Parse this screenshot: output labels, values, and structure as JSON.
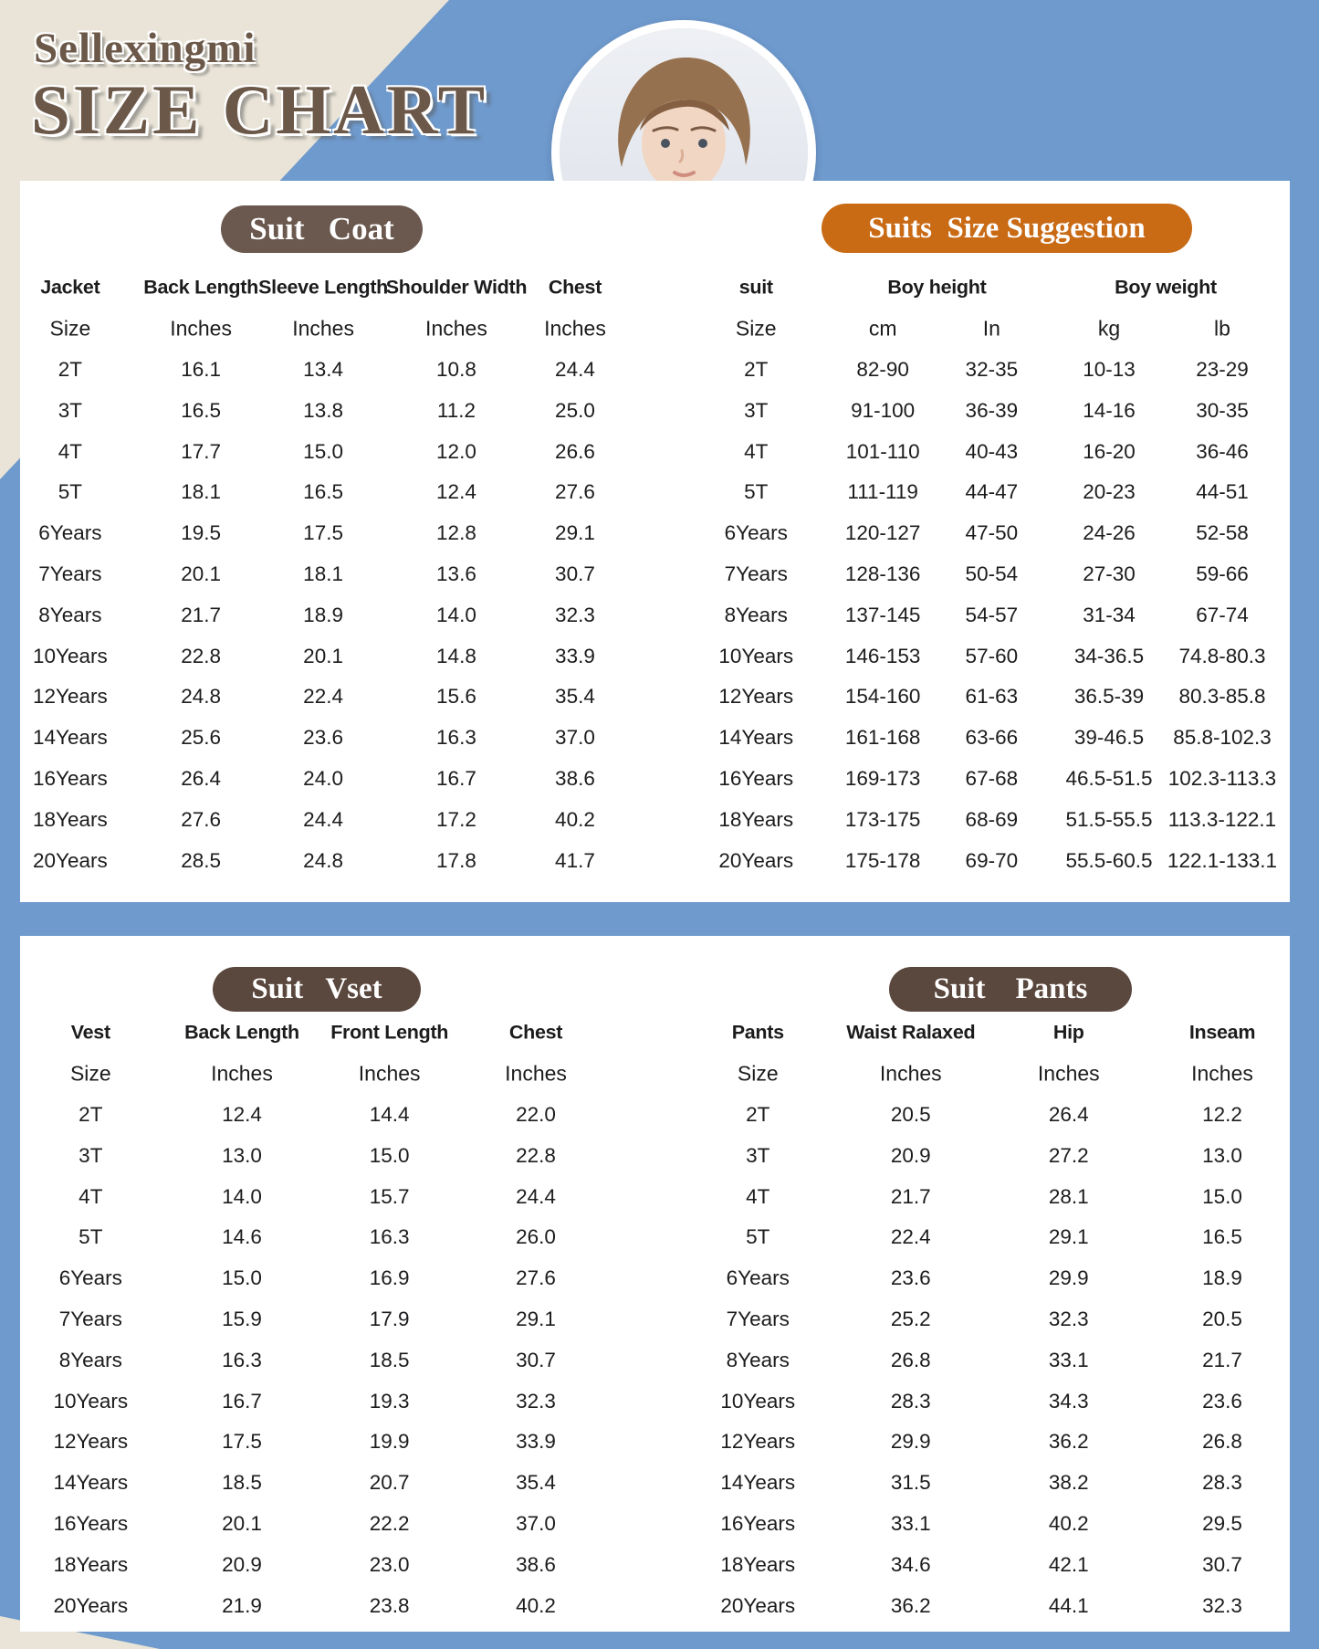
{
  "header": {
    "brand": "Sellexingmi",
    "title": "SIZE CHART"
  },
  "colors": {
    "blue-bg": "#6f9acd",
    "beige": "#e9e4d7",
    "panel": "#ffffff",
    "text": "#1c1c1e",
    "title-brown": "#6b5848",
    "coat-pill": "#6b584e",
    "suggestion-pill": "#c96a15",
    "vset-pill": "#5a473d",
    "pants-pill": "#5a473d"
  },
  "tables": {
    "coat": {
      "pill": "Suit   Coat",
      "columns": [
        "Jacket",
        "Back Length",
        "Sleeve Length",
        "Shoulder Width",
        "Chest"
      ],
      "units": [
        "Size",
        "Inches",
        "Inches",
        "Inches",
        "Inches"
      ],
      "rows": [
        [
          "2T",
          "16.1",
          "13.4",
          "10.8",
          "24.4"
        ],
        [
          "3T",
          "16.5",
          "13.8",
          "11.2",
          "25.0"
        ],
        [
          "4T",
          "17.7",
          "15.0",
          "12.0",
          "26.6"
        ],
        [
          "5T",
          "18.1",
          "16.5",
          "12.4",
          "27.6"
        ],
        [
          "6Years",
          "19.5",
          "17.5",
          "12.8",
          "29.1"
        ],
        [
          "7Years",
          "20.1",
          "18.1",
          "13.6",
          "30.7"
        ],
        [
          "8Years",
          "21.7",
          "18.9",
          "14.0",
          "32.3"
        ],
        [
          "10Years",
          "22.8",
          "20.1",
          "14.8",
          "33.9"
        ],
        [
          "12Years",
          "24.8",
          "22.4",
          "15.6",
          "35.4"
        ],
        [
          "14Years",
          "25.6",
          "23.6",
          "16.3",
          "37.0"
        ],
        [
          "16Years",
          "26.4",
          "24.0",
          "16.7",
          "38.6"
        ],
        [
          "18Years",
          "27.6",
          "24.4",
          "17.2",
          "40.2"
        ],
        [
          "20Years",
          "28.5",
          "24.8",
          "17.8",
          "41.7"
        ]
      ]
    },
    "suggestion": {
      "pill": "Suits  Size Suggestion",
      "groups": [
        "suit",
        "Boy height",
        "Boy weight"
      ],
      "units": [
        "Size",
        "cm",
        "In",
        "kg",
        "lb"
      ],
      "rows": [
        [
          "2T",
          "82-90",
          "32-35",
          "10-13",
          "23-29"
        ],
        [
          "3T",
          "91-100",
          "36-39",
          "14-16",
          "30-35"
        ],
        [
          "4T",
          "101-110",
          "40-43",
          "16-20",
          "36-46"
        ],
        [
          "5T",
          "111-119",
          "44-47",
          "20-23",
          "44-51"
        ],
        [
          "6Years",
          "120-127",
          "47-50",
          "24-26",
          "52-58"
        ],
        [
          "7Years",
          "128-136",
          "50-54",
          "27-30",
          "59-66"
        ],
        [
          "8Years",
          "137-145",
          "54-57",
          "31-34",
          "67-74"
        ],
        [
          "10Years",
          "146-153",
          "57-60",
          "34-36.5",
          "74.8-80.3"
        ],
        [
          "12Years",
          "154-160",
          "61-63",
          "36.5-39",
          "80.3-85.8"
        ],
        [
          "14Years",
          "161-168",
          "63-66",
          "39-46.5",
          "85.8-102.3"
        ],
        [
          "16Years",
          "169-173",
          "67-68",
          "46.5-51.5",
          "102.3-113.3"
        ],
        [
          "18Years",
          "173-175",
          "68-69",
          "51.5-55.5",
          "113.3-122.1"
        ],
        [
          "20Years",
          "175-178",
          "69-70",
          "55.5-60.5",
          "122.1-133.1"
        ]
      ]
    },
    "vset": {
      "pill": "Suit   Vset",
      "columns": [
        "Vest",
        "Back Length",
        "Front  Length",
        "Chest"
      ],
      "units": [
        "Size",
        "Inches",
        "Inches",
        "Inches"
      ],
      "rows": [
        [
          "2T",
          "12.4",
          "14.4",
          "22.0"
        ],
        [
          "3T",
          "13.0",
          "15.0",
          "22.8"
        ],
        [
          "4T",
          "14.0",
          "15.7",
          "24.4"
        ],
        [
          "5T",
          "14.6",
          "16.3",
          "26.0"
        ],
        [
          "6Years",
          "15.0",
          "16.9",
          "27.6"
        ],
        [
          "7Years",
          "15.9",
          "17.9",
          "29.1"
        ],
        [
          "8Years",
          "16.3",
          "18.5",
          "30.7"
        ],
        [
          "10Years",
          "16.7",
          "19.3",
          "32.3"
        ],
        [
          "12Years",
          "17.5",
          "19.9",
          "33.9"
        ],
        [
          "14Years",
          "18.5",
          "20.7",
          "35.4"
        ],
        [
          "16Years",
          "20.1",
          "22.2",
          "37.0"
        ],
        [
          "18Years",
          "20.9",
          "23.0",
          "38.6"
        ],
        [
          "20Years",
          "21.9",
          "23.8",
          "40.2"
        ]
      ]
    },
    "pants": {
      "pill": "Suit    Pants",
      "columns": [
        "Pants",
        "Waist Ralaxed",
        "Hip",
        "Inseam"
      ],
      "units": [
        "Size",
        "Inches",
        "Inches",
        "Inches"
      ],
      "rows": [
        [
          "2T",
          "20.5",
          "26.4",
          "12.2"
        ],
        [
          "3T",
          "20.9",
          "27.2",
          "13.0"
        ],
        [
          "4T",
          "21.7",
          "28.1",
          "15.0"
        ],
        [
          "5T",
          "22.4",
          "29.1",
          "16.5"
        ],
        [
          "6Years",
          "23.6",
          "29.9",
          "18.9"
        ],
        [
          "7Years",
          "25.2",
          "32.3",
          "20.5"
        ],
        [
          "8Years",
          "26.8",
          "33.1",
          "21.7"
        ],
        [
          "10Years",
          "28.3",
          "34.3",
          "23.6"
        ],
        [
          "12Years",
          "29.9",
          "36.2",
          "26.8"
        ],
        [
          "14Years",
          "31.5",
          "38.2",
          "28.3"
        ],
        [
          "16Years",
          "33.1",
          "40.2",
          "29.5"
        ],
        [
          "18Years",
          "34.6",
          "42.1",
          "30.7"
        ],
        [
          "20Years",
          "36.2",
          "44.1",
          "32.3"
        ]
      ]
    }
  }
}
